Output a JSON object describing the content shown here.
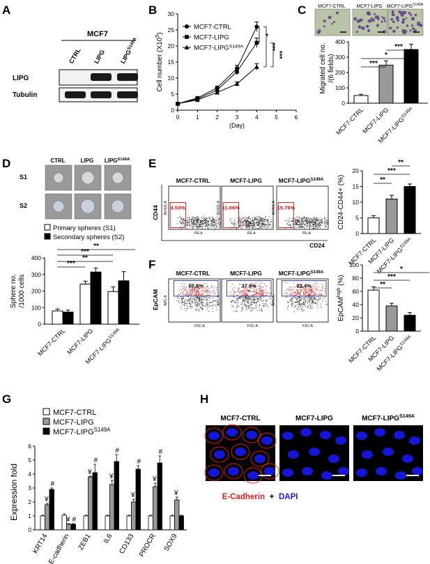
{
  "panels": {
    "A": {
      "letter": "A",
      "cell_line": "MCF7",
      "lanes": [
        "CTRL",
        "LIPG",
        "LIPG<sup>S149A</sup>"
      ],
      "lane_display": [
        "CTRL",
        "LIPG",
        "LIPG"
      ],
      "lane_sup": [
        "",
        "",
        "S149A"
      ],
      "rows": [
        "LIPG",
        "Tubulin"
      ]
    },
    "B": {
      "letter": "B",
      "chart_data": {
        "type": "line",
        "xlabel": "(Day)",
        "ylabel": "Cell number (X10",
        "ylabel_sup": "5",
        "ylabel_end": ")",
        "xlim": [
          0,
          6
        ],
        "ylim": [
          0,
          30
        ],
        "xticks": [
          0,
          1,
          2,
          3,
          4,
          5,
          6
        ],
        "yticks": [
          0,
          5,
          10,
          15,
          20,
          25,
          30
        ],
        "x": [
          0,
          1,
          2,
          3,
          4
        ],
        "series": [
          {
            "name": "MCF7-CTRL",
            "marker": "circle",
            "values": [
              2,
              3.8,
              7,
              13,
              26
            ],
            "errors": [
              0.3,
              0.4,
              0.5,
              1.0,
              1.5
            ]
          },
          {
            "name": "MCF7-LIPG",
            "marker": "square",
            "values": [
              2,
              3.5,
              6.3,
              12,
              21
            ],
            "errors": [
              0.3,
              0.4,
              0.5,
              1.0,
              1.5
            ]
          },
          {
            "name": "MCF7-LIPG",
            "name_sup": "S149A",
            "marker": "triangle",
            "values": [
              2,
              3.2,
              5.5,
              8.2,
              13.5
            ],
            "errors": [
              0.3,
              0.3,
              0.4,
              0.6,
              1.0
            ]
          }
        ],
        "significance": [
          "*",
          "***",
          "***"
        ]
      }
    },
    "C": {
      "letter": "C",
      "image_labels": [
        "MCF7-CTRL",
        "MCF7-LIPG",
        "MCF7-LIPG"
      ],
      "image_label_sup": [
        "",
        "",
        "S149A"
      ],
      "chart_data": {
        "type": "bar",
        "categories": [
          "MCF7-CTRL",
          "MCF7-LIPG",
          "MCF7-LIPG"
        ],
        "category_sup": [
          "",
          "",
          "S149A"
        ],
        "values": [
          50,
          248,
          350
        ],
        "errors": [
          8,
          28,
          35
        ],
        "colors": [
          "#ffffff",
          "#999999",
          "#000000"
        ],
        "ylabel": "Migrated cell no.",
        "ylabel2": "/(6 fields)",
        "ylim": [
          0,
          400
        ],
        "yticks": [
          0,
          100,
          200,
          300,
          400
        ],
        "significance": [
          "*",
          "***",
          "***"
        ]
      }
    },
    "D": {
      "letter": "D",
      "image_cols": [
        "CTRL",
        "LIPG",
        "LIPG"
      ],
      "image_col_sup": [
        "",
        "",
        "S149A"
      ],
      "image_rows": [
        "S1",
        "S2"
      ],
      "chart_data": {
        "type": "bar",
        "categories": [
          "MCF7-CTRL",
          "MCF7-LIPG",
          "MCF7-LIPG"
        ],
        "category_sup": [
          "",
          "",
          "S149A"
        ],
        "series": [
          {
            "name": "Primary spheres (S1)",
            "color": "#ffffff",
            "values": [
              80,
              242,
              197
            ],
            "errors": [
              12,
              18,
              28
            ]
          },
          {
            "name": "Secondary spheres (S2)",
            "color": "#000000",
            "values": [
              73,
              315,
              262
            ],
            "errors": [
              12,
              25,
              55
            ]
          }
        ],
        "ylabel": "Sphere no.",
        "ylabel2": "/1000 cells",
        "ylim": [
          0,
          400
        ],
        "yticks": [
          0,
          100,
          200,
          300,
          400
        ],
        "significance": [
          "***",
          "***",
          "**",
          "**"
        ]
      }
    },
    "E": {
      "letter": "E",
      "flow": [
        {
          "title": "MCF7-CTRL",
          "title_sup": "",
          "pct": "4.53%"
        },
        {
          "title": "MCF7-LIPG",
          "title_sup": "",
          "pct": "11.06%"
        },
        {
          "title": "MCF7-LIPG",
          "title_sup": "S149A",
          "pct": "15.76%"
        }
      ],
      "x_axis": "CD24",
      "y_axis": "CD44",
      "inner_x": "PE-A",
      "inner_y": "BV421-A",
      "chart_data": {
        "type": "bar",
        "categories": [
          "MCF7-CTRL",
          "MCF7-LIPG",
          "MCF7-LIPG"
        ],
        "category_sup": [
          "",
          "",
          "S149A"
        ],
        "values": [
          5,
          11,
          15
        ],
        "errors": [
          0.7,
          1.2,
          0.8
        ],
        "colors": [
          "#ffffff",
          "#999999",
          "#000000"
        ],
        "ylabel": "CD24-CD44+ (%)",
        "ylim": [
          0,
          20
        ],
        "yticks": [
          0,
          5,
          10,
          15,
          20
        ],
        "significance": [
          "**",
          "***",
          "**"
        ]
      }
    },
    "F": {
      "letter": "F",
      "flow": [
        {
          "title": "MCF7-CTRL",
          "title_sup": "",
          "pct": "62.8%"
        },
        {
          "title": "MCF7-LIPG",
          "title_sup": "",
          "pct": "37.8%"
        },
        {
          "title": "MCF7-LIPG",
          "title_sup": "S149A",
          "pct": "23.4%"
        }
      ],
      "y_axis": "EpCAM",
      "inner_x": "FSC-A",
      "inner_y": "APC-A",
      "chart_data": {
        "type": "bar",
        "categories": [
          "MCF7-CTRL",
          "MCF7-LIPG",
          "MCF7-LIPG"
        ],
        "category_sup": [
          "",
          "",
          "S149A"
        ],
        "values": [
          62,
          38,
          24
        ],
        "errors": [
          5,
          4,
          4
        ],
        "colors": [
          "#ffffff",
          "#999999",
          "#000000"
        ],
        "ylabel": "EpCAM",
        "ylabel_sup": "high",
        "ylabel_end": " (%)",
        "ylim": [
          0,
          100
        ],
        "yticks": [
          0,
          20,
          40,
          60,
          80,
          100
        ],
        "significance": [
          "**",
          "***",
          "*"
        ]
      }
    },
    "G": {
      "letter": "G",
      "chart_data": {
        "type": "bar",
        "categories": [
          "KRT14",
          "E-cadherin",
          "ZEB1",
          "IL6",
          "CD133",
          "PROCR",
          "SOX9"
        ],
        "series": [
          {
            "name": "MCF7-CTRL",
            "color": "#ffffff",
            "values": [
              1,
              1.05,
              1,
              1,
              1,
              1,
              1
            ],
            "errors": [
              0.05,
              0.1,
              0.05,
              0.05,
              0.05,
              0.05,
              0.05
            ]
          },
          {
            "name": "MCF7-LIPG",
            "color": "#999999",
            "values": [
              1.8,
              0.4,
              3.8,
              3.25,
              2.0,
              3.1,
              2.15
            ],
            "errors": [
              0.1,
              0.05,
              0.05,
              0.3,
              0.2,
              0.25,
              0.2
            ]
          },
          {
            "name": "MCF7-LIPG",
            "name_sup": "S149A",
            "color": "#000000",
            "values": [
              2.9,
              0.4,
              4.1,
              4.9,
              4.35,
              4.8,
              1.0
            ],
            "errors": [
              0.1,
              0.05,
              0.6,
              0.5,
              0.25,
              0.5,
              0.05
            ]
          }
        ],
        "marks_lipg": [
          "¥",
          "¥",
          "¥",
          "¥",
          "¥",
          "¥",
          "¥"
        ],
        "marks_s149a": [
          "#",
          "#",
          "#",
          "#",
          "#",
          "#",
          ""
        ],
        "ylabel": "Expression fold",
        "ylim": [
          0,
          6
        ],
        "yticks": [
          0,
          1,
          2,
          3,
          4,
          5,
          6
        ]
      }
    },
    "H": {
      "letter": "H",
      "image_labels": [
        "MCF7-CTRL",
        "MCF7-LIPG",
        "MCF7-LIPG"
      ],
      "image_label_sup": [
        "",
        "",
        "S149A"
      ],
      "legend_red": "E-Cadherin",
      "legend_plus": "+",
      "legend_blue": "DAPI",
      "colors": {
        "red": "#e02020",
        "blue": "#1a1aff",
        "bg": "#000000"
      }
    }
  }
}
